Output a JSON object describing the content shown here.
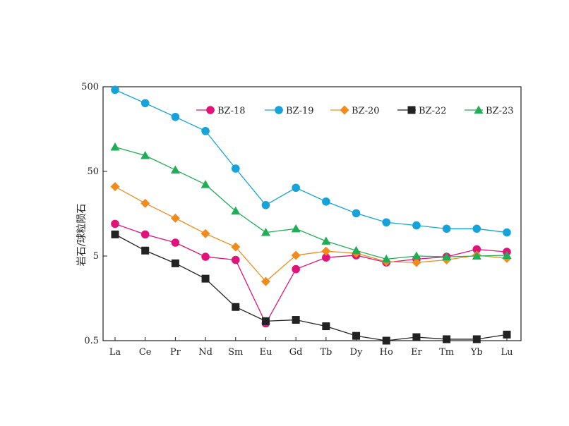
{
  "chart_data": {
    "type": "line",
    "ylabel": "岩石/球粒陨石",
    "yscale": "log",
    "ylim": [
      0.5,
      500
    ],
    "yticks": [
      {
        "value": 500,
        "label": "500"
      },
      {
        "value": 50,
        "label": "50"
      },
      {
        "value": 5,
        "label": "5"
      },
      {
        "value": 0.5,
        "label": "0.5"
      }
    ],
    "categories": [
      "La",
      "Ce",
      "Pr",
      "Nd",
      "Sm",
      "Eu",
      "Gd",
      "Tb",
      "Dy",
      "Ho",
      "Er",
      "Tm",
      "Yb",
      "Lu"
    ],
    "legend_position": "top-right",
    "series": [
      {
        "name": "BZ-18",
        "color": "#e0137a",
        "marker": "circle",
        "values": [
          12,
          9,
          7.2,
          4.9,
          4.5,
          0.8,
          3.5,
          4.8,
          5.1,
          4.2,
          4.6,
          4.9,
          6.0,
          5.6
        ]
      },
      {
        "name": "BZ-19",
        "color": "#15a3d9",
        "marker": "circle",
        "values": [
          460,
          320,
          220,
          150,
          54,
          20,
          32,
          22,
          16,
          12.5,
          11.5,
          10.5,
          10.5,
          9.5
        ]
      },
      {
        "name": "BZ-20",
        "color": "#f28b1c",
        "marker": "diamond",
        "values": [
          33,
          21,
          14,
          9.2,
          6.4,
          2.5,
          5.1,
          5.7,
          5.4,
          4.3,
          4.2,
          4.5,
          5.1,
          4.7
        ]
      },
      {
        "name": "BZ-22",
        "color": "#222222",
        "marker": "square",
        "values": [
          9,
          5.8,
          4.1,
          2.7,
          1.25,
          0.85,
          0.88,
          0.74,
          0.57,
          0.5,
          0.55,
          0.52,
          0.52,
          0.59
        ]
      },
      {
        "name": "BZ-23",
        "color": "#1fae55",
        "marker": "triangle",
        "values": [
          97,
          77,
          52,
          35,
          17,
          9.5,
          10.5,
          7.5,
          5.8,
          4.6,
          5.0,
          4.9,
          5.0,
          5.1
        ]
      }
    ]
  }
}
